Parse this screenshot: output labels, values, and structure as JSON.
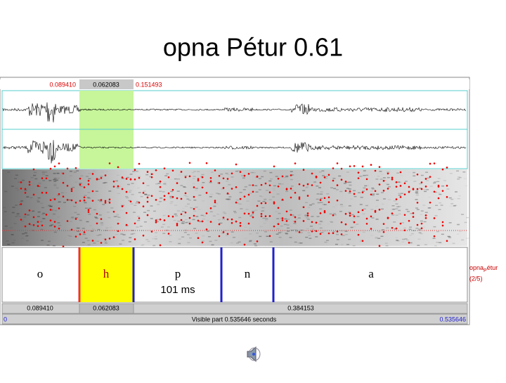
{
  "slide_title": "opna Pétur 0.61",
  "selection_bar": {
    "left": "0.089410",
    "selected": "0.062083",
    "right": "0.151493"
  },
  "tier": {
    "intervals": [
      "o",
      "h",
      "p",
      "n",
      "a"
    ],
    "duration_label": "101 ms",
    "name_parts": [
      "opna",
      "P",
      "étur"
    ],
    "count": "(2/5)"
  },
  "duration_bar": [
    "0.089410",
    "0.062083",
    "0.384153"
  ],
  "visible_bar": {
    "start": "0",
    "label": "Visible part 0.535646 seconds",
    "end": "0.535646"
  }
}
